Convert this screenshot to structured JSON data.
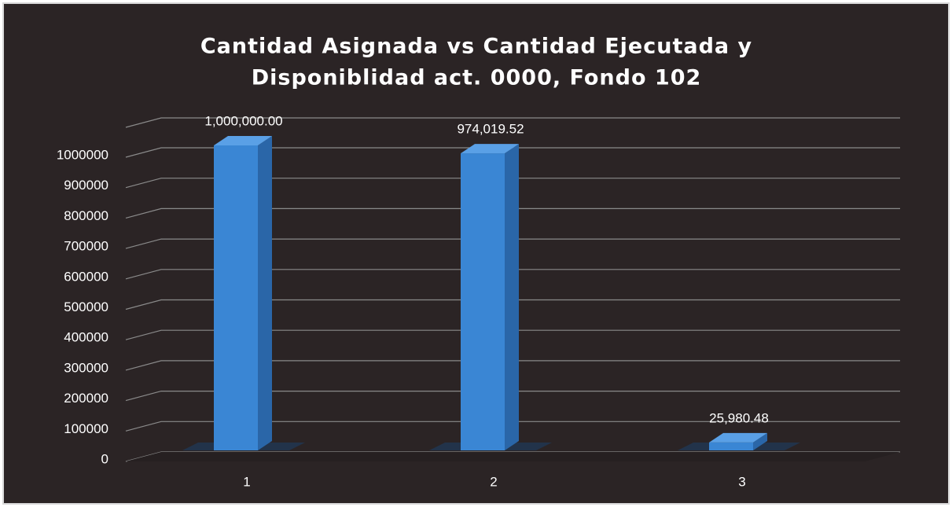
{
  "chart_data": {
    "type": "bar3d",
    "title": [
      "Cantidad Asignada vs Cantidad Ejecutada y",
      "Disponiblidad act. 0000, Fondo 102"
    ],
    "categories": [
      "1",
      "2",
      "3"
    ],
    "values": [
      1000000,
      974019.52,
      25980.48
    ],
    "value_labels": [
      "1,000,000.00",
      "974,019.52",
      "25,980.48"
    ],
    "color": "#3a86d4",
    "ylim": [
      0,
      1000000
    ],
    "yticks": [
      0,
      100000,
      200000,
      300000,
      400000,
      500000,
      600000,
      700000,
      800000,
      900000,
      1000000
    ],
    "grid": true
  }
}
